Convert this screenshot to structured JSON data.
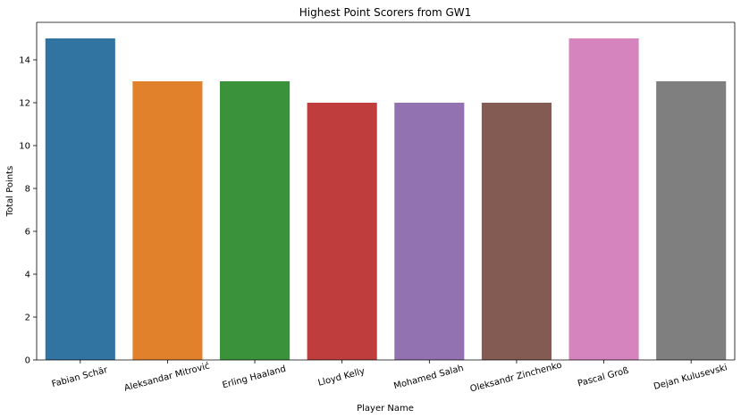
{
  "chart_data": {
    "type": "bar",
    "title": "Highest Point Scorers from GW1",
    "xlabel": "Player Name",
    "ylabel": "Total Points",
    "ylim": [
      0,
      15.75
    ],
    "yticks": [
      0,
      2,
      4,
      6,
      8,
      10,
      12,
      14
    ],
    "categories": [
      "Fabian Schär",
      "Aleksandar Mitrović",
      "Erling Haaland",
      "Lloyd Kelly",
      "Mohamed Salah",
      "Oleksandr Zinchenko",
      "Pascal Groß",
      "Dejan Kulusevski"
    ],
    "values": [
      15,
      13,
      13,
      12,
      12,
      12,
      15,
      13
    ],
    "colors": [
      "#3274a1",
      "#e1812c",
      "#3a923a",
      "#c03d3e",
      "#9372b2",
      "#845b53",
      "#d684bd",
      "#7f7f7f"
    ],
    "grid": false,
    "legend": "none"
  }
}
